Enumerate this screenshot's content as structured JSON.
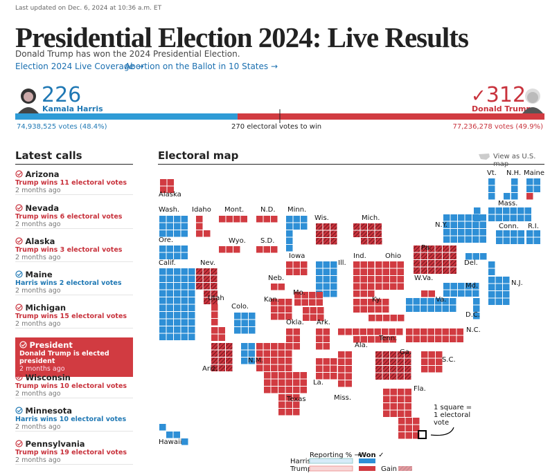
{
  "header": {
    "updated": "Last updated on Dec. 6, 2024 at 10:36 a.m. ET",
    "title": "Presidential Election 2024: Live Results",
    "subtitle": "Donald Trump has won the 2024 Presidential Election.",
    "links": [
      "Election 2024 Live Coverage →",
      "Abortion on the Ballot in 10 States →"
    ]
  },
  "tally": {
    "harris": {
      "ev": 226,
      "name": "Kamala Harris",
      "votes": "74,938,525 votes (48.4%)",
      "color": "#2e9bd6"
    },
    "trump": {
      "ev": 312,
      "name": "Donald Trump",
      "votes": "77,236,278 votes (49.9%)",
      "color": "#d13b41"
    },
    "threshold": "270 electoral votes to win"
  },
  "latest_calls": {
    "heading": "Latest calls",
    "items": [
      {
        "state": "Arizona",
        "text": "Trump wins 11 electoral votes",
        "time": "2 months ago",
        "color": "#c8323c"
      },
      {
        "state": "Nevada",
        "text": "Trump wins 6 electoral votes",
        "time": "2 months ago",
        "color": "#c8323c"
      },
      {
        "state": "Alaska",
        "text": "Trump wins 3 electoral votes",
        "time": "2 months ago",
        "color": "#c8323c"
      },
      {
        "state": "Maine",
        "text": "Harris wins 2 electoral votes",
        "time": "2 months ago",
        "color": "#1f78b4"
      },
      {
        "state": "Michigan",
        "text": "Trump wins 15 electoral votes",
        "time": "2 months ago",
        "color": "#c8323c"
      },
      {
        "state": "President",
        "text": "Donald Trump is elected president",
        "time": "2 months ago",
        "color": "#ffffff",
        "highlight": true
      },
      {
        "state": "Wisconsin",
        "text": "Trump wins 10 electoral votes",
        "time": "2 months ago",
        "color": "#c8323c"
      },
      {
        "state": "Minnesota",
        "text": "Harris wins 10 electoral votes",
        "time": "2 months ago",
        "color": "#1f78b4"
      },
      {
        "state": "Pennsylvania",
        "text": "Trump wins 19 electoral votes",
        "time": "2 months ago",
        "color": "#c8323c"
      }
    ]
  },
  "map": {
    "heading": "Electoral map",
    "toggle": "View as U.S. map",
    "states": [
      "Alaska",
      "Wash.",
      "Idaho",
      "Mont.",
      "N.D.",
      "Minn.",
      "Wis.",
      "Mich.",
      "Ore.",
      "Wyo.",
      "S.D.",
      "Iowa",
      "Ill.",
      "Ind.",
      "Ohio",
      "Pa.",
      "N.Y.",
      "Vt.",
      "N.H.",
      "Maine",
      "Mass.",
      "Conn.",
      "R.I.",
      "Calif.",
      "Nev.",
      "Neb.",
      "Utah",
      "Colo.",
      "Kan.",
      "Mo.",
      "Ky.",
      "Va.",
      "W.Va.",
      "Del.",
      "Md.",
      "N.J.",
      "D.C.",
      "Okla.",
      "Ark.",
      "Tenn.",
      "N.C.",
      "Ariz.",
      "N.M.",
      "Ala.",
      "Ga.",
      "S.C.",
      "La.",
      "Texas",
      "Miss.",
      "Fla.",
      "Hawaii"
    ],
    "note": "1 square = 1 electoral vote",
    "legend": {
      "reporting": "Reporting % →",
      "won": "Won ✓",
      "harris": "Harris",
      "trump": "Trump",
      "gain": "Gain"
    }
  }
}
